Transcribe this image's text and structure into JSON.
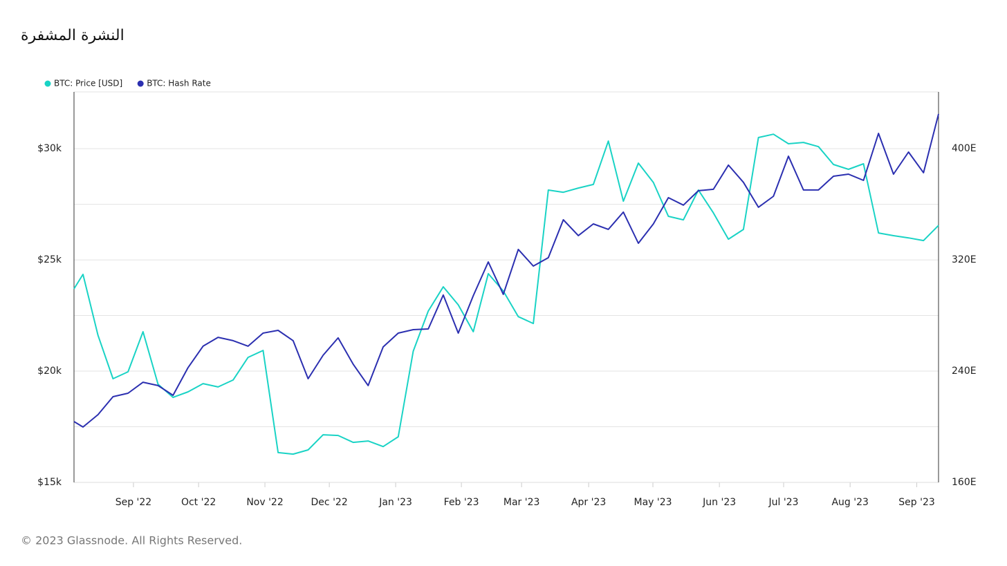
{
  "chart_data": {
    "type": "line",
    "title": "النشرة المشفرة",
    "footer": "© 2023 Glassnode. All Rights Reserved.",
    "legend": "top-left",
    "grid": true,
    "minor_grid": true,
    "x": [
      -0.6,
      0,
      1,
      2,
      3,
      4,
      5,
      6,
      7,
      8,
      9,
      10,
      11,
      12,
      13,
      14,
      15,
      16,
      17,
      18,
      19,
      20,
      21,
      22,
      23,
      24,
      25,
      26,
      27,
      28,
      29,
      30,
      31,
      32,
      33,
      34,
      35,
      36,
      37,
      38,
      39,
      40,
      41,
      42,
      43,
      44,
      45,
      46,
      47,
      48,
      49,
      50,
      51,
      52,
      53,
      54,
      55,
      56,
      57
    ],
    "xlim": [
      -0.6,
      57
    ],
    "xticks": [
      {
        "value": 3.36,
        "label": "Sep '22"
      },
      {
        "value": 7.7,
        "label": "Oct '22"
      },
      {
        "value": 12.12,
        "label": "Nov '22"
      },
      {
        "value": 16.41,
        "label": "Dec '22"
      },
      {
        "value": 20.83,
        "label": "Jan '23"
      },
      {
        "value": 25.21,
        "label": "Feb '23"
      },
      {
        "value": 29.22,
        "label": "Mar '23"
      },
      {
        "value": 33.69,
        "label": "Apr '23"
      },
      {
        "value": 37.97,
        "label": "May '23"
      },
      {
        "value": 42.4,
        "label": "Jun '23"
      },
      {
        "value": 46.68,
        "label": "Jul '23"
      },
      {
        "value": 51.11,
        "label": "Aug '23"
      },
      {
        "value": 55.55,
        "label": "Sep '23"
      }
    ],
    "ylim": [
      15000,
      32550
    ],
    "yticks": [
      {
        "value": 15000,
        "label": "$15k"
      },
      {
        "value": 20000,
        "label": "$20k"
      },
      {
        "value": 25000,
        "label": "$25k"
      },
      {
        "value": 30000,
        "label": "$30k"
      }
    ],
    "y2lim": [
      160,
      440.7
    ],
    "y2ticks": [
      {
        "value": 160,
        "label": "160E"
      },
      {
        "value": 240,
        "label": "240E"
      },
      {
        "value": 320,
        "label": "320E"
      },
      {
        "value": 400,
        "label": "400E"
      }
    ],
    "series": [
      {
        "name": "BTC: Price [USD]",
        "color": "#19d3c5",
        "axis": "y",
        "values": [
          23700,
          24350,
          21610,
          19660,
          19970,
          21770,
          19410,
          18820,
          19070,
          19440,
          19290,
          19600,
          20620,
          20930,
          16340,
          16270,
          16460,
          17140,
          17110,
          16800,
          16860,
          16610,
          17050,
          20900,
          22700,
          23790,
          22980,
          21770,
          24380,
          23600,
          22450,
          22140,
          28140,
          28040,
          28230,
          28390,
          30340,
          27640,
          29350,
          28480,
          26960,
          26800,
          28140,
          27110,
          25930,
          26370,
          30500,
          30650,
          30220,
          30280,
          30090,
          29290,
          29070,
          29320,
          26210,
          26090,
          25990,
          25870,
          26550
        ]
      },
      {
        "name": "BTC: Hash Rate",
        "color": "#2b2fb0",
        "axis": "y2",
        "values": [
          203.7,
          199.8,
          208.7,
          221.6,
          224.1,
          232.0,
          229.6,
          222.6,
          242.5,
          257.9,
          264.3,
          261.9,
          257.9,
          267.3,
          269.3,
          261.9,
          234.5,
          251.4,
          263.9,
          245.0,
          229.6,
          257.4,
          267.3,
          269.8,
          270.3,
          294.7,
          267.3,
          294.2,
          318.5,
          295.2,
          327.5,
          315.5,
          321.5,
          348.8,
          337.4,
          345.8,
          341.9,
          354.3,
          331.9,
          345.8,
          364.7,
          359.3,
          369.7,
          370.7,
          388.1,
          375.7,
          357.8,
          365.7,
          394.5,
          370.2,
          370.2,
          380.1,
          381.6,
          377.1,
          410.9,
          381.6,
          397.5,
          382.6,
          424.8
        ]
      }
    ]
  }
}
